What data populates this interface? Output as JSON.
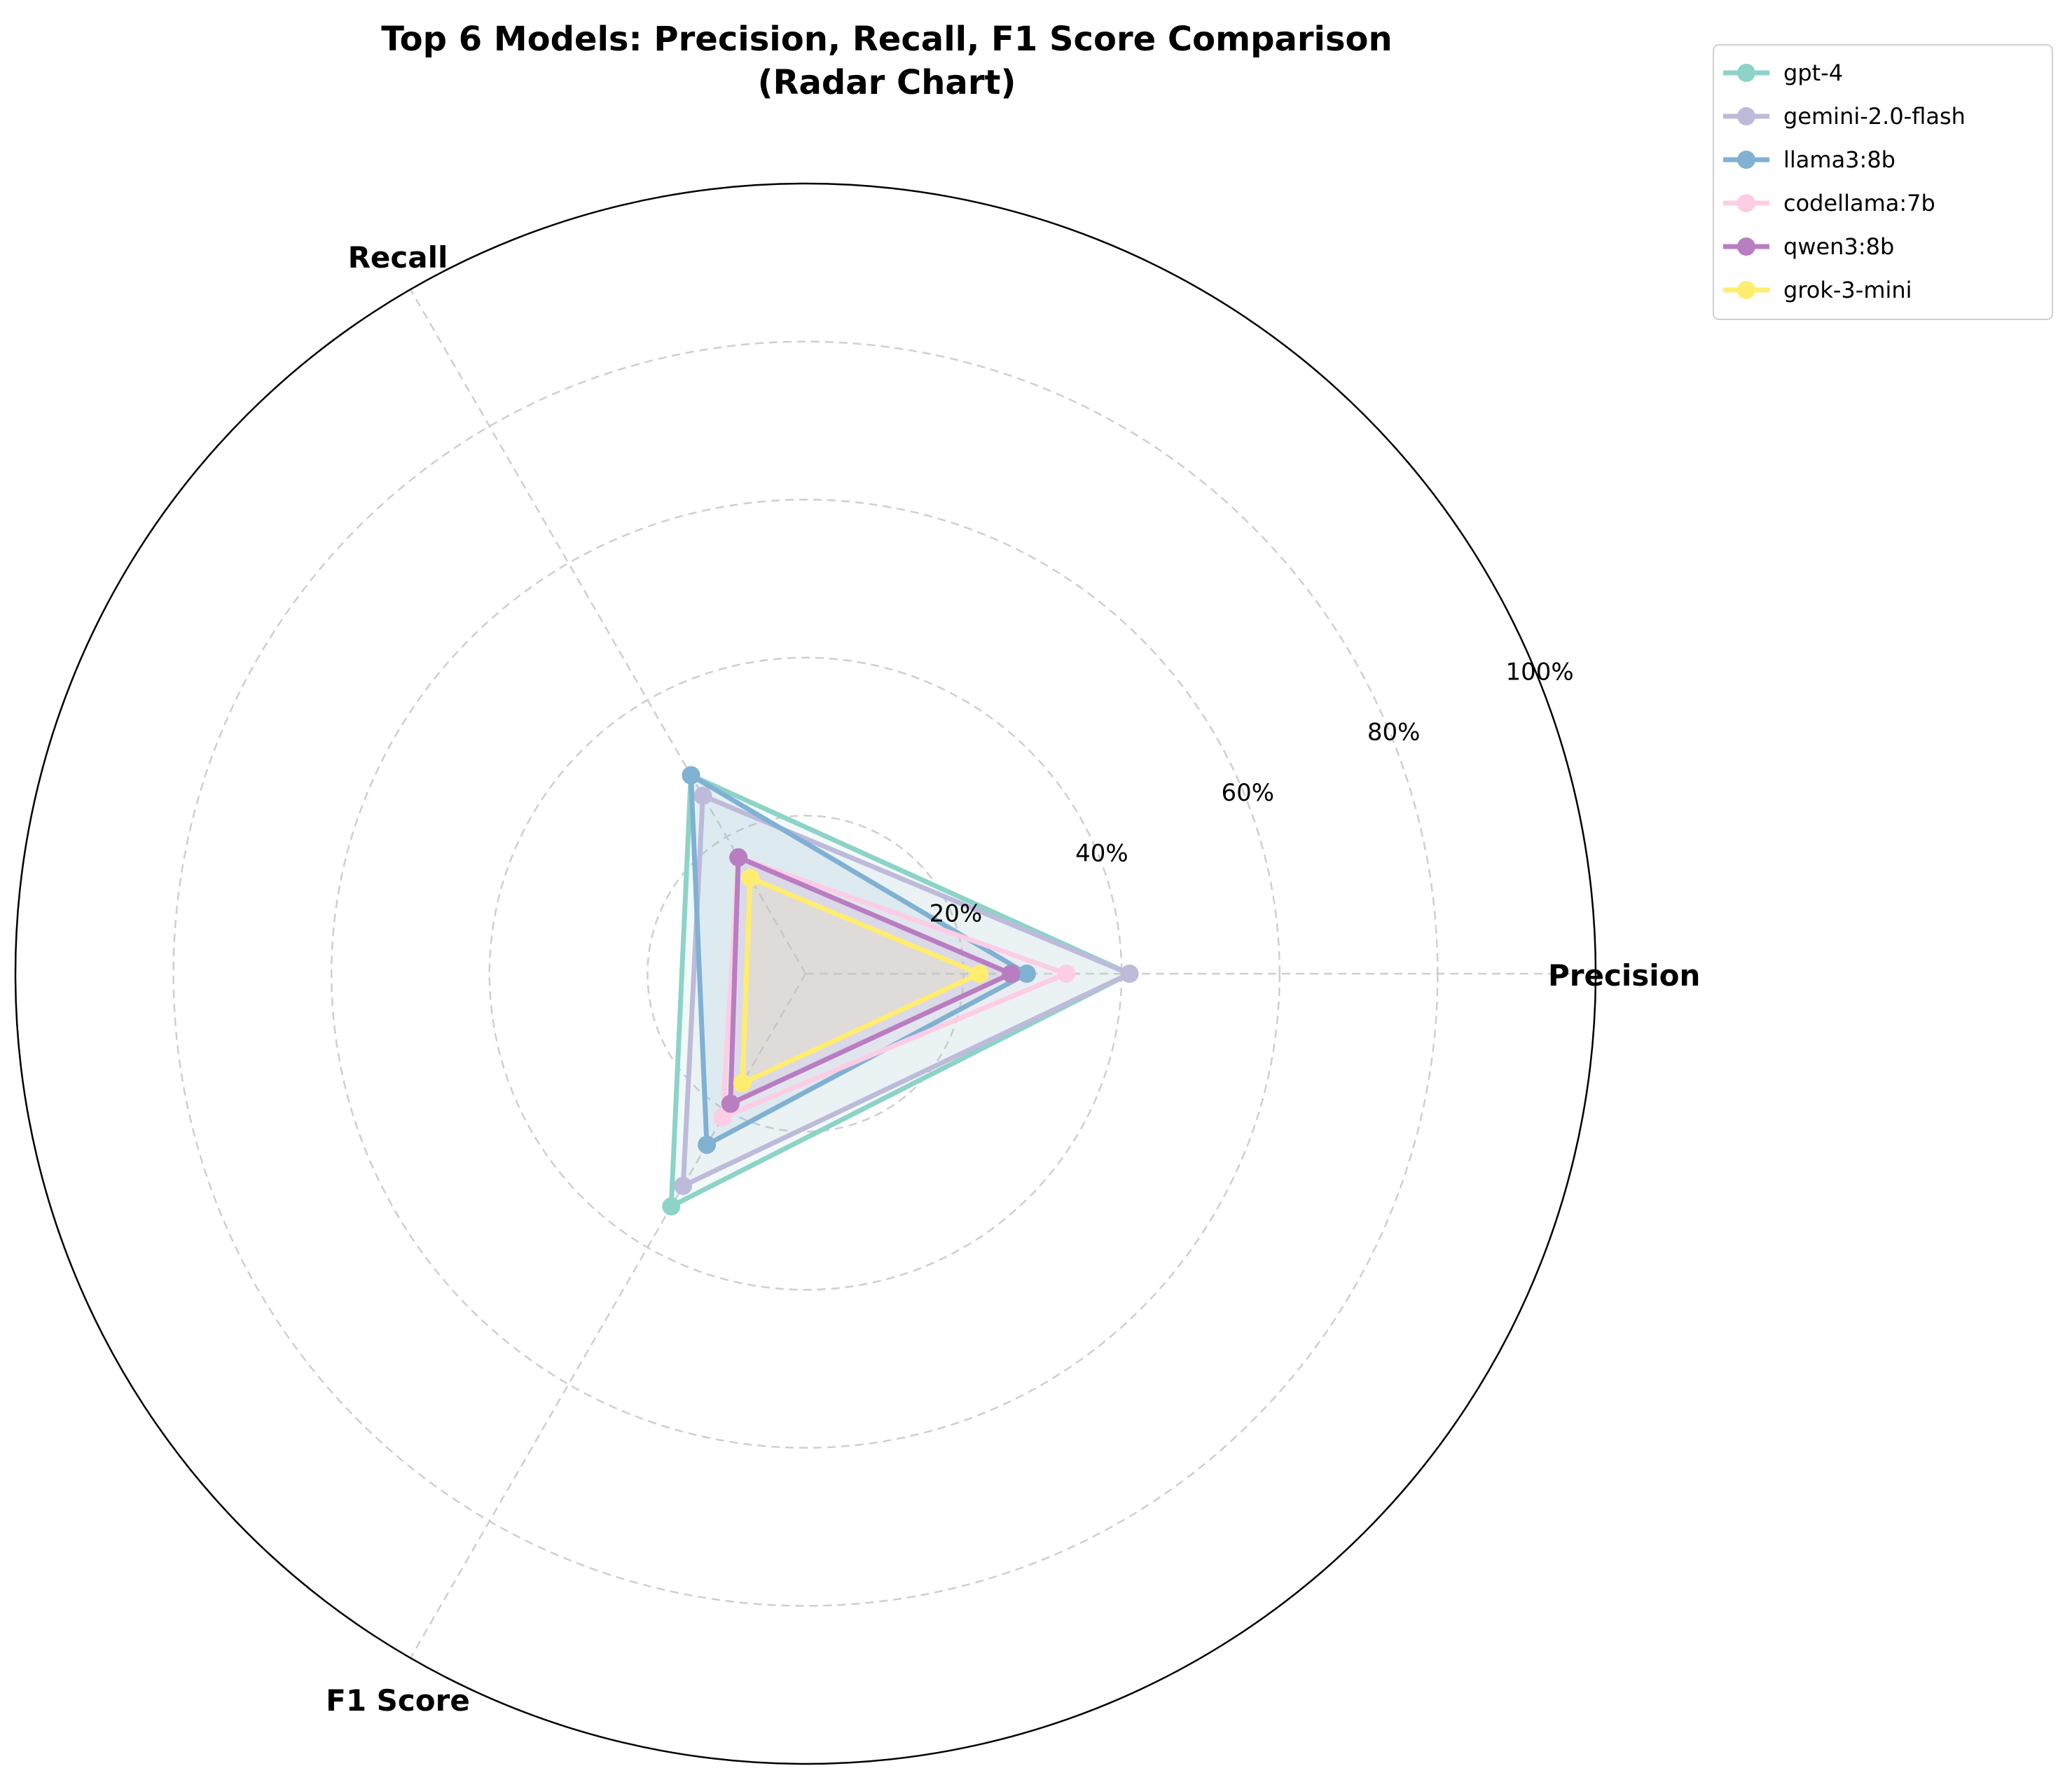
{
  "chart_data": {
    "type": "radar",
    "title_line1": "Top 6 Models: Precision, Recall, F1 Score Comparison",
    "title_line2": "(Radar Chart)",
    "axes": [
      "Precision",
      "Recall",
      "F1 Score"
    ],
    "rlim": [
      0,
      100
    ],
    "r_ticks": [
      20,
      40,
      60,
      80,
      100
    ],
    "r_tick_labels": [
      "20%",
      "40%",
      "60%",
      "80%",
      "100%"
    ],
    "grid": true,
    "legend_position": "top-right, outside plot",
    "series": [
      {
        "name": "gpt-4",
        "color": "#8dd3c7",
        "values": [
          41,
          29,
          34
        ]
      },
      {
        "name": "gemini-2.0-flash",
        "color": "#bebada",
        "values": [
          41,
          26,
          31
        ]
      },
      {
        "name": "llama3:8b",
        "color": "#80b1d3",
        "values": [
          28,
          29,
          25
        ]
      },
      {
        "name": "codellama:7b",
        "color": "#fccde5",
        "values": [
          33,
          17,
          21
        ]
      },
      {
        "name": "qwen3:8b",
        "color": "#b97dc1",
        "values": [
          26,
          17,
          19
        ]
      },
      {
        "name": "grok-3-mini",
        "color": "#ffed6f",
        "values": [
          22,
          14,
          16
        ]
      }
    ]
  }
}
